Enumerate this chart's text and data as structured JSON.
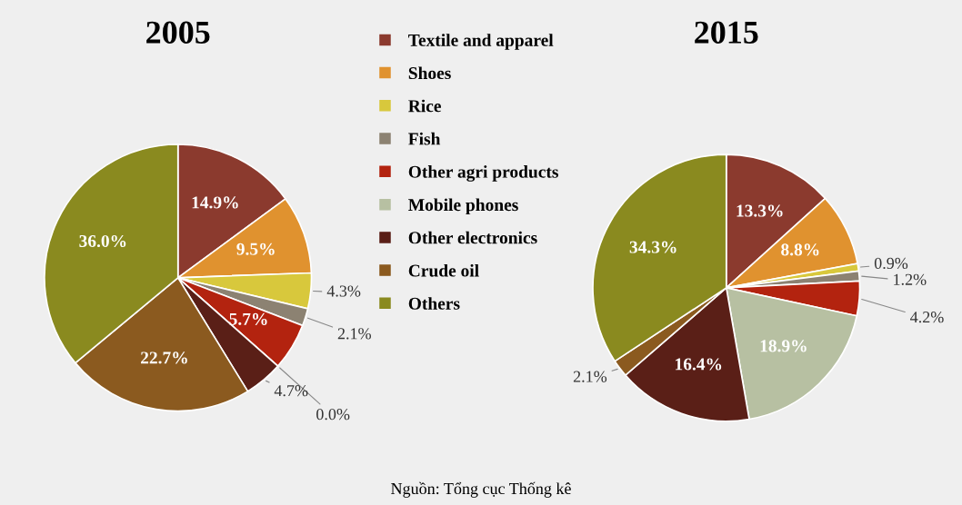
{
  "chart_data": [
    {
      "type": "pie",
      "title": "2005",
      "categories": [
        "Textile and apparel",
        "Shoes",
        "Rice",
        "Fish",
        "Other agri products",
        "Mobile phones",
        "Other electronics",
        "Crude oil",
        "Others"
      ],
      "values": [
        14.9,
        9.5,
        4.3,
        2.1,
        5.7,
        0.0,
        4.7,
        22.7,
        36.0
      ],
      "value_labels": [
        "14.9%",
        "9.5%",
        "4.3%",
        "2.1%",
        "5.7%",
        "0.0%",
        "4.7%",
        "22.7%",
        "36.0%"
      ],
      "colors": [
        "#8b3a2e",
        "#e0922f",
        "#d8c83c",
        "#8c8272",
        "#b3230f",
        "#b7c0a2",
        "#5a1f17",
        "#8b5a1f",
        "#8a8a1f"
      ],
      "legend": "right",
      "annotations": [
        "Nguồn: Tổng cục Thống kê"
      ]
    },
    {
      "type": "pie",
      "title": "2015",
      "categories": [
        null,
        null,
        null,
        null,
        null,
        null,
        null,
        null,
        null
      ],
      "values": [
        13.3,
        8.8,
        0.9,
        1.2,
        4.2,
        18.9,
        16.4,
        2.1,
        34.3
      ],
      "value_labels": [
        "13.3%",
        "8.8%",
        "0.9%",
        "1.2%",
        "4.2%",
        "18.9%",
        "16.4%",
        "2.1%",
        "34.3%"
      ],
      "colors": [
        "#8b3a2e",
        "#e0922f",
        "#d8c83c",
        "#8c8272",
        "#b3230f",
        "#b7c0a2",
        "#5a1f17",
        "#8b5a1f",
        "#8a8a1f"
      ]
    }
  ]
}
